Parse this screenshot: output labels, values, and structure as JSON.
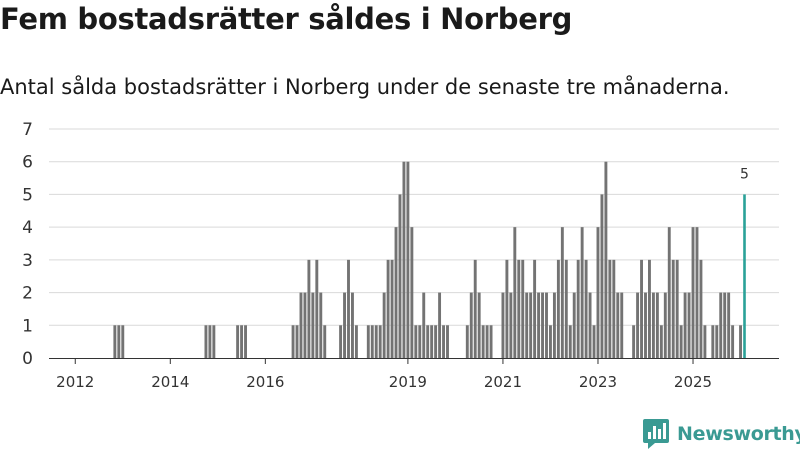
{
  "title": "Fem bostadsrätter såldes i Norberg",
  "subtitle": "Antal sålda bostadsrätter i Norberg under de senaste tre månaderna.",
  "brand": {
    "name": "Newsworthy",
    "color": "#3a9a93"
  },
  "colors": {
    "bar": "#737373",
    "highlight": "#2aa198",
    "grid": "#d9d9d9",
    "axis": "#333333"
  },
  "chart_data": {
    "type": "bar",
    "title": "Fem bostadsrätter såldes i Norberg",
    "xlabel": "",
    "ylabel": "",
    "ylim": [
      0,
      7
    ],
    "yticks": [
      0,
      1,
      2,
      3,
      4,
      5,
      6,
      7
    ],
    "start": {
      "year": 2011,
      "month": 7
    },
    "xticks": [
      {
        "label": "2012",
        "year": 2012,
        "month": 1
      },
      {
        "label": "2014",
        "year": 2014,
        "month": 1
      },
      {
        "label": "2016",
        "year": 2016,
        "month": 1
      },
      {
        "label": "2019",
        "year": 2019,
        "month": 1
      },
      {
        "label": "2021",
        "year": 2021,
        "month": 1
      },
      {
        "label": "2023",
        "year": 2023,
        "month": 1
      },
      {
        "label": "2025",
        "year": 2025,
        "month": 1
      }
    ],
    "values": [
      0,
      0,
      0,
      0,
      0,
      0,
      0,
      0,
      0,
      0,
      0,
      0,
      0,
      0,
      0,
      0,
      1,
      1,
      1,
      0,
      0,
      0,
      0,
      0,
      0,
      0,
      0,
      0,
      0,
      0,
      0,
      0,
      0,
      0,
      0,
      0,
      0,
      0,
      0,
      1,
      1,
      1,
      0,
      0,
      0,
      0,
      0,
      1,
      1,
      1,
      0,
      0,
      0,
      0,
      0,
      0,
      0,
      0,
      0,
      0,
      0,
      1,
      1,
      2,
      2,
      3,
      2,
      3,
      2,
      1,
      0,
      0,
      0,
      1,
      2,
      3,
      2,
      1,
      0,
      0,
      1,
      1,
      1,
      1,
      2,
      3,
      3,
      4,
      5,
      6,
      6,
      4,
      1,
      1,
      2,
      1,
      1,
      1,
      2,
      1,
      1,
      0,
      0,
      0,
      0,
      1,
      2,
      3,
      2,
      1,
      1,
      1,
      0,
      0,
      2,
      3,
      2,
      4,
      3,
      3,
      2,
      2,
      3,
      2,
      2,
      2,
      1,
      2,
      3,
      4,
      3,
      1,
      2,
      3,
      4,
      3,
      2,
      1,
      4,
      5,
      6,
      3,
      3,
      2,
      2,
      0,
      0,
      1,
      2,
      3,
      2,
      3,
      2,
      2,
      1,
      2,
      4,
      3,
      3,
      1,
      2,
      2,
      4,
      4,
      3,
      1,
      0,
      1,
      1,
      2,
      2,
      2,
      1,
      0,
      1,
      5
    ],
    "highlight_last": true,
    "data_labels": [
      {
        "label": "5",
        "index": "last"
      }
    ]
  }
}
